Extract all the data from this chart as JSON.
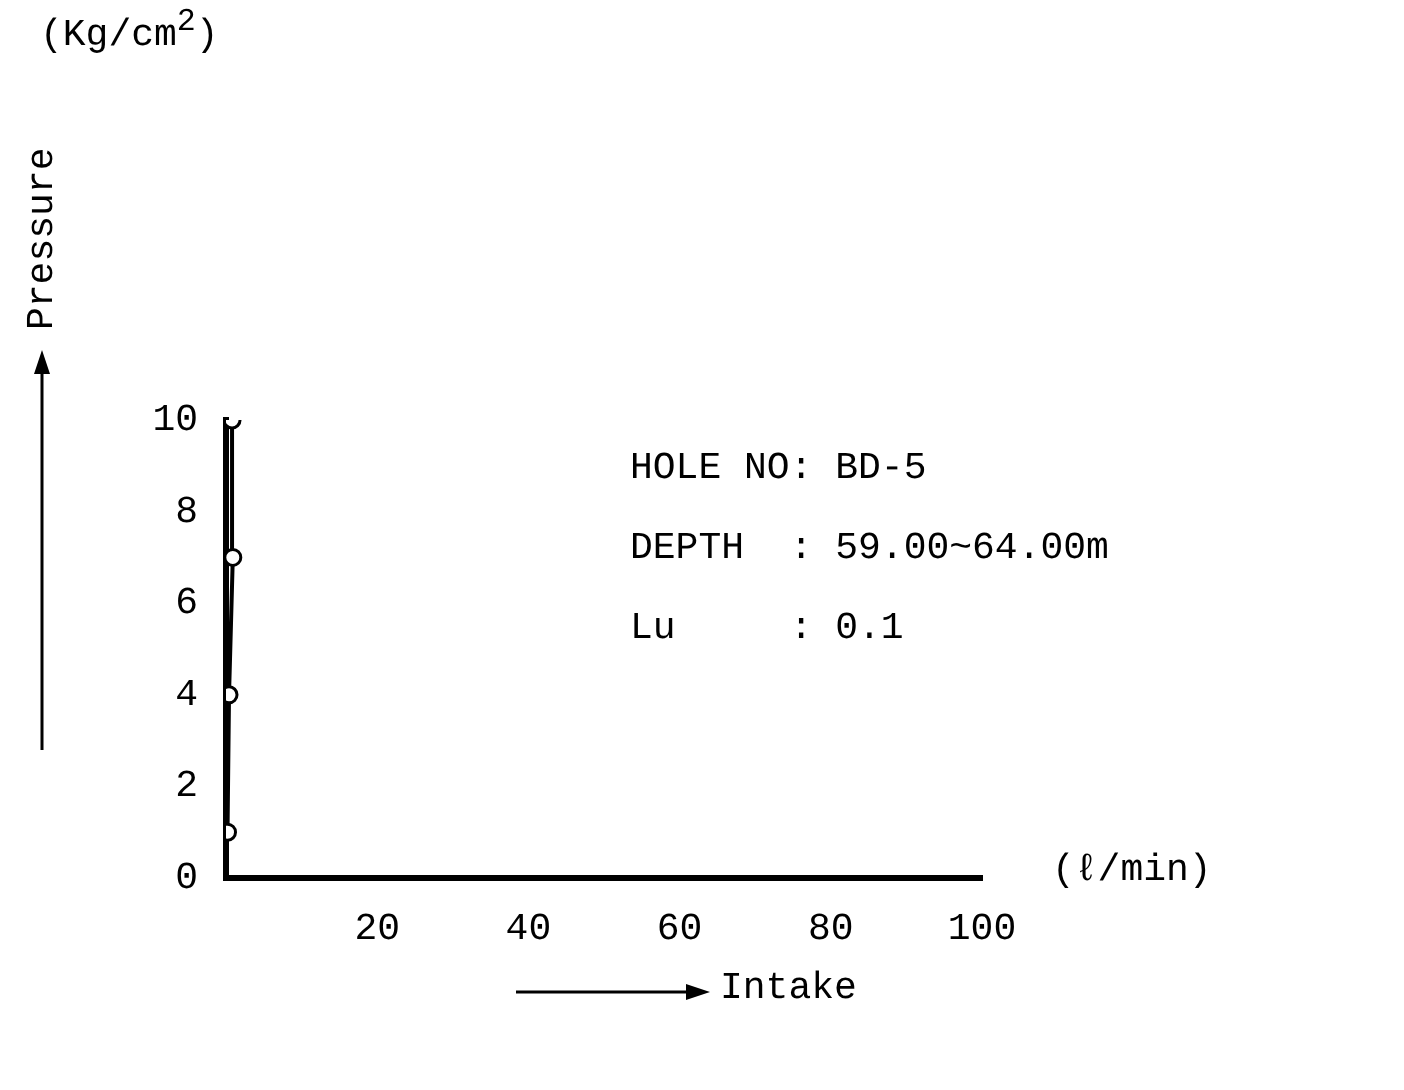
{
  "chart_data": {
    "type": "line",
    "xlabel": "Intake",
    "ylabel": "Pressure",
    "annotations": [
      "(Kg/cm$^{2}$)",
      "(ℓ/min)",
      "HOLE NO: BD-5",
      "DEPTH  : 59.00~64.00m",
      "Lu     : 0.1"
    ],
    "series": [
      {
        "color": "#000000",
        "x": [
          0.2,
          0.4,
          0.9,
          0.8
        ],
        "values": [
          1,
          4,
          7,
          10
        ],
        "line_style": "solid"
      }
    ],
    "xlim": [
      0,
      100
    ],
    "xticks": [
      20,
      40,
      60,
      80,
      100
    ],
    "ylim": [
      0,
      10
    ],
    "yticks": [
      0,
      2,
      4,
      6,
      8,
      10
    ],
    "grid": false,
    "legend": false,
    "marker": "circle"
  }
}
